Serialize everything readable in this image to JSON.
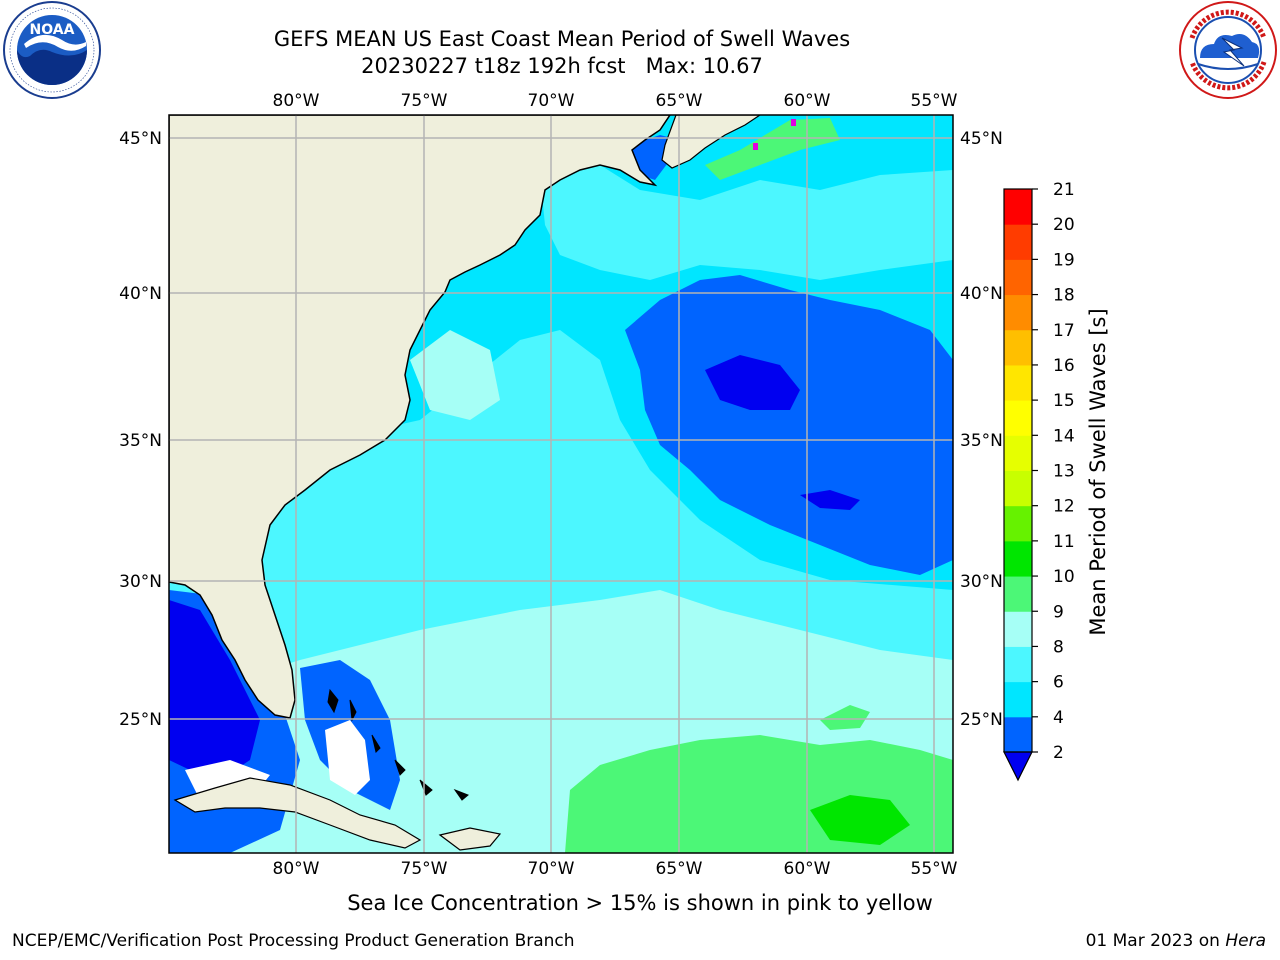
{
  "title": {
    "line1": "GEFS MEAN US East Coast Mean Period of Swell Waves",
    "line2": "20230227 t18z 192h fcst   Max: 10.67"
  },
  "map": {
    "lon_ticks": [
      "80°W",
      "75°W",
      "70°W",
      "65°W",
      "60°W",
      "55°W"
    ],
    "lat_ticks": [
      "45°N",
      "40°N",
      "35°N",
      "30°N",
      "25°N"
    ],
    "lon_range": [
      -85,
      -54
    ],
    "lat_range": [
      20,
      46
    ],
    "colors": {
      "land": "#efefdc",
      "coastline": "#000000",
      "grid": "#b4b4b4",
      "no_data": "#ffffff"
    }
  },
  "colorbar": {
    "label": "Mean Period of Swell Waves [s]",
    "ticks": [
      "21",
      "20",
      "19",
      "18",
      "17",
      "16",
      "15",
      "14",
      "13",
      "12",
      "11",
      "10",
      "9",
      "8",
      "6",
      "4",
      "2"
    ],
    "bins": [
      {
        "range": "2-4",
        "color": "#0064ff"
      },
      {
        "range": "4-6",
        "color": "#00e6ff"
      },
      {
        "range": "6-8",
        "color": "#4cf7ff"
      },
      {
        "range": "8-9",
        "color": "#a6fff6"
      },
      {
        "range": "9-10",
        "color": "#4cf777"
      },
      {
        "range": "10-11",
        "color": "#00e600"
      },
      {
        "range": "11-12",
        "color": "#66f200"
      },
      {
        "range": "12-13",
        "color": "#c8ff00"
      },
      {
        "range": "13-14",
        "color": "#e6ff00"
      },
      {
        "range": "14-15",
        "color": "#ffff00"
      },
      {
        "range": "15-16",
        "color": "#ffe600"
      },
      {
        "range": "16-17",
        "color": "#ffbf00"
      },
      {
        "range": "17-18",
        "color": "#ff8c00"
      },
      {
        "range": "18-19",
        "color": "#ff6400"
      },
      {
        "range": "19-20",
        "color": "#ff3c00"
      },
      {
        "range": "20-21",
        "color": "#ff0000"
      }
    ],
    "under_color": "#0000f0"
  },
  "sea_ice_note": "Sea Ice Concentration > 15% is shown in pink to yellow",
  "footer": {
    "left": "NCEP/EMC/Verification Post Processing Product Generation Branch",
    "right_date": "01 Mar 2023 on ",
    "right_host": "Hera"
  },
  "logos": {
    "left": "noaa-logo",
    "right": "national-weather-service-logo"
  }
}
